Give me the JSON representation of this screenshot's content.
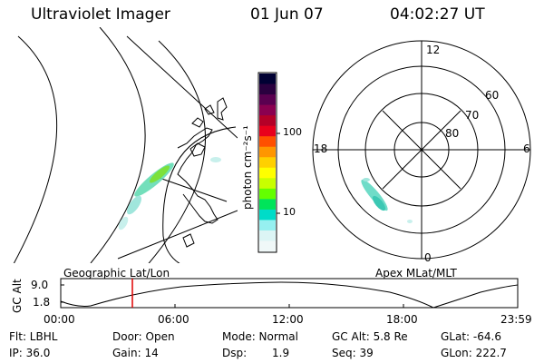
{
  "header": {
    "title": "Ultraviolet Imager",
    "date": "01 Jun 07",
    "time": "04:02:27 UT"
  },
  "colorbar": {
    "label": "photon cm⁻²s⁻¹",
    "ticks": [
      "100",
      "10"
    ],
    "colors": [
      "#000033",
      "#2a003f",
      "#5a0050",
      "#8a0050",
      "#b40028",
      "#e8001c",
      "#ff5000",
      "#ff9600",
      "#ffd000",
      "#ffff00",
      "#c8ff00",
      "#64ff00",
      "#00e45a",
      "#00dcc8",
      "#96f0f0",
      "#dcf5f5",
      "#f0f8f8"
    ]
  },
  "polar_plot": {
    "mlt_labels": {
      "top": "12",
      "left": "18",
      "right": "6",
      "bottom": "0"
    },
    "lat_labels": [
      "60",
      "70",
      "80"
    ]
  },
  "panels": {
    "left_label": "Geographic Lat/Lon",
    "right_label": "Apex MLat/MLT"
  },
  "altitude_plot": {
    "ylabel": "GC Alt",
    "yticks": [
      "9.0",
      "1.8"
    ],
    "xticks": [
      "00:00",
      "06:00",
      "12:00",
      "18:00",
      "23:59"
    ]
  },
  "info": {
    "flt": "Flt: LBHL",
    "door": "Door: Open",
    "mode": "Mode: Normal",
    "gc_alt": "GC Alt: 5.8 Re",
    "glat": "GLat: -64.6",
    "ip": "IP: 36.0",
    "gain": "Gain: 14",
    "dsp_label": "Dsp:",
    "dsp_value": "1.9",
    "seq": "Seq: 39",
    "glon": "GLon: 222.7"
  }
}
